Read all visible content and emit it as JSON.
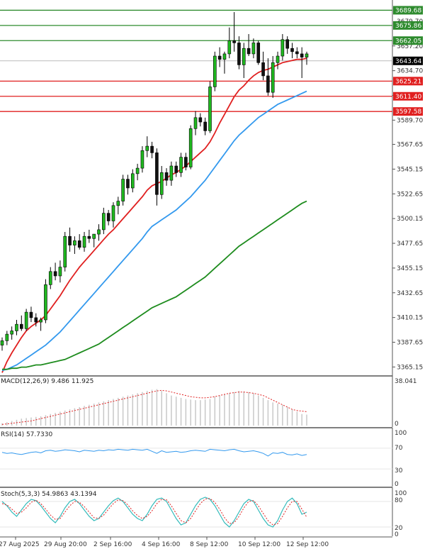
{
  "chart_data": {
    "type": "candlestick",
    "price_axis": {
      "ticks": [
        "3657.20",
        "3634.70",
        "3612.20",
        "3589.70",
        "3567.65",
        "3545.15",
        "3522.65",
        "3500.15",
        "3477.65",
        "3455.15",
        "3432.65",
        "3410.15",
        "3387.65",
        "3365.15"
      ],
      "partial_tick": "3679.70",
      "ylim": [
        3357,
        3699
      ]
    },
    "x_axis": {
      "labels": [
        "27 Aug 2025",
        "29 Aug 20:00",
        "2 Sep 16:00",
        "4 Sep 16:00",
        "8 Sep 12:00",
        "10 Sep 12:00",
        "12 Sep 12:00"
      ]
    },
    "current_price": {
      "value": 3643.64,
      "label": "3643.64",
      "color": "#000000"
    },
    "resistance_levels": [
      {
        "value": 3689.68,
        "label": "3689.68",
        "color": "#2e8b2e"
      },
      {
        "value": 3675.86,
        "label": "3675.86",
        "color": "#2e8b2e"
      },
      {
        "value": 3662.05,
        "label": "3662.05",
        "color": "#2e8b2e"
      }
    ],
    "support_levels": [
      {
        "value": 3625.21,
        "label": "3625.21",
        "color": "#e02020"
      },
      {
        "value": 3611.4,
        "label": "3611.40",
        "color": "#e02020"
      },
      {
        "value": 3597.58,
        "label": "3597.58",
        "color": "#e02020"
      }
    ],
    "candles": [
      [
        3385,
        3392,
        3380,
        3389
      ],
      [
        3389,
        3398,
        3385,
        3395
      ],
      [
        3395,
        3402,
        3390,
        3398
      ],
      [
        3398,
        3408,
        3394,
        3404
      ],
      [
        3404,
        3412,
        3398,
        3400
      ],
      [
        3400,
        3418,
        3398,
        3415
      ],
      [
        3415,
        3420,
        3406,
        3410
      ],
      [
        3410,
        3414,
        3402,
        3406
      ],
      [
        3406,
        3410,
        3398,
        3408
      ],
      [
        3408,
        3445,
        3405,
        3440
      ],
      [
        3440,
        3456,
        3436,
        3452
      ],
      [
        3452,
        3460,
        3444,
        3448
      ],
      [
        3448,
        3462,
        3442,
        3456
      ],
      [
        3456,
        3488,
        3452,
        3484
      ],
      [
        3484,
        3492,
        3470,
        3476
      ],
      [
        3476,
        3484,
        3468,
        3480
      ],
      [
        3480,
        3486,
        3472,
        3474
      ],
      [
        3474,
        3488,
        3470,
        3484
      ],
      [
        3484,
        3490,
        3478,
        3482
      ],
      [
        3482,
        3486,
        3474,
        3486
      ],
      [
        3486,
        3495,
        3480,
        3490
      ],
      [
        3490,
        3510,
        3486,
        3505
      ],
      [
        3505,
        3508,
        3494,
        3498
      ],
      [
        3498,
        3515,
        3492,
        3512
      ],
      [
        3512,
        3520,
        3504,
        3516
      ],
      [
        3516,
        3540,
        3512,
        3536
      ],
      [
        3536,
        3540,
        3522,
        3528
      ],
      [
        3528,
        3545,
        3524,
        3541
      ],
      [
        3541,
        3550,
        3535,
        3546
      ],
      [
        3546,
        3566,
        3542,
        3562
      ],
      [
        3562,
        3575,
        3556,
        3566
      ],
      [
        3566,
        3570,
        3555,
        3560
      ],
      [
        3560,
        3564,
        3512,
        3522
      ],
      [
        3522,
        3548,
        3518,
        3542
      ],
      [
        3542,
        3546,
        3530,
        3535
      ],
      [
        3535,
        3552,
        3530,
        3548
      ],
      [
        3548,
        3552,
        3538,
        3542
      ],
      [
        3542,
        3560,
        3538,
        3556
      ],
      [
        3556,
        3560,
        3544,
        3547
      ],
      [
        3547,
        3585,
        3545,
        3582
      ],
      [
        3582,
        3598,
        3576,
        3592
      ],
      [
        3592,
        3596,
        3584,
        3588
      ],
      [
        3588,
        3592,
        3576,
        3580
      ],
      [
        3580,
        3625,
        3578,
        3620
      ],
      [
        3620,
        3652,
        3616,
        3648
      ],
      [
        3648,
        3656,
        3638,
        3645
      ],
      [
        3645,
        3652,
        3632,
        3650
      ],
      [
        3650,
        3674,
        3646,
        3662
      ],
      [
        3662,
        3688,
        3652,
        3660
      ],
      [
        3660,
        3666,
        3636,
        3640
      ],
      [
        3640,
        3660,
        3628,
        3655
      ],
      [
        3655,
        3668,
        3648,
        3650
      ],
      [
        3650,
        3664,
        3646,
        3660
      ],
      [
        3660,
        3662,
        3640,
        3642
      ],
      [
        3642,
        3652,
        3626,
        3630
      ],
      [
        3630,
        3646,
        3612,
        3615
      ],
      [
        3615,
        3648,
        3610,
        3642
      ],
      [
        3642,
        3652,
        3636,
        3648
      ],
      [
        3648,
        3668,
        3644,
        3663
      ],
      [
        3663,
        3666,
        3650,
        3655
      ],
      [
        3655,
        3660,
        3646,
        3652
      ],
      [
        3652,
        3656,
        3646,
        3650
      ],
      [
        3650,
        3656,
        3628,
        3647
      ],
      [
        3647,
        3652,
        3640,
        3650
      ]
    ],
    "moving_averages": [
      {
        "color": "#e02020",
        "values": [
          3360,
          3370,
          3378,
          3385,
          3392,
          3398,
          3402,
          3405,
          3408,
          3412,
          3418,
          3424,
          3430,
          3437,
          3444,
          3450,
          3456,
          3461,
          3466,
          3471,
          3476,
          3481,
          3486,
          3490,
          3495,
          3500,
          3505,
          3510,
          3515,
          3520,
          3526,
          3530,
          3532,
          3534,
          3537,
          3540,
          3542,
          3545,
          3548,
          3552,
          3556,
          3560,
          3564,
          3570,
          3578,
          3587,
          3595,
          3603,
          3611,
          3617,
          3621,
          3626,
          3630,
          3633,
          3635,
          3636,
          3638,
          3640,
          3642,
          3643,
          3644,
          3645,
          3645,
          3646
        ]
      },
      {
        "color": "#3399ee",
        "values": [
          3362,
          3363,
          3365,
          3367,
          3370,
          3373,
          3376,
          3379,
          3382,
          3385,
          3389,
          3393,
          3397,
          3402,
          3407,
          3412,
          3417,
          3422,
          3427,
          3432,
          3437,
          3442,
          3447,
          3452,
          3457,
          3462,
          3467,
          3472,
          3477,
          3482,
          3488,
          3493,
          3496,
          3499,
          3502,
          3505,
          3508,
          3512,
          3516,
          3520,
          3525,
          3530,
          3535,
          3541,
          3547,
          3553,
          3559,
          3565,
          3571,
          3576,
          3580,
          3584,
          3588,
          3592,
          3595,
          3598,
          3601,
          3604,
          3606,
          3608,
          3610,
          3612,
          3614,
          3616
        ]
      },
      {
        "color": "#1e8c1e",
        "values": [
          3363,
          3363,
          3364,
          3364,
          3365,
          3365,
          3366,
          3367,
          3367,
          3368,
          3369,
          3370,
          3371,
          3372,
          3374,
          3376,
          3378,
          3380,
          3382,
          3384,
          3386,
          3389,
          3392,
          3395,
          3398,
          3401,
          3404,
          3407,
          3410,
          3413,
          3416,
          3419,
          3421,
          3423,
          3425,
          3427,
          3429,
          3432,
          3435,
          3438,
          3441,
          3444,
          3447,
          3451,
          3455,
          3459,
          3463,
          3467,
          3471,
          3475,
          3478,
          3481,
          3484,
          3487,
          3490,
          3493,
          3496,
          3499,
          3502,
          3505,
          3508,
          3511,
          3514,
          3516
        ]
      }
    ],
    "macd": {
      "label": "MACD(12,26,9) 9.486 11.925",
      "scale_labels": [
        "38.041",
        "0"
      ],
      "ylim": [
        0,
        38.041
      ],
      "histogram": [
        2,
        3,
        4,
        5,
        6,
        6.5,
        7,
        7.5,
        8,
        9,
        10,
        11,
        12,
        13,
        14,
        15,
        16,
        17,
        18,
        19,
        20,
        21,
        22,
        23,
        24,
        25,
        26,
        27,
        28,
        29,
        30,
        31,
        31.5,
        30,
        28,
        26,
        25,
        24,
        23,
        22.5,
        22,
        22,
        22.5,
        23,
        25,
        26,
        27,
        28,
        29,
        30,
        29.5,
        29,
        28,
        26,
        24,
        22,
        20,
        19,
        18,
        16,
        14,
        12,
        10,
        9.5
      ],
      "signal": [
        1,
        1.5,
        2,
        2.5,
        3,
        3.5,
        4,
        5,
        6,
        7,
        8,
        9,
        10,
        11,
        12,
        13,
        14,
        15,
        16,
        17,
        18,
        19,
        20,
        21,
        22,
        23,
        24,
        25,
        26,
        27,
        28,
        29,
        30,
        30.5,
        30,
        29,
        28,
        27,
        26,
        25,
        24.5,
        24,
        24,
        24.5,
        25,
        26,
        27,
        28,
        28.5,
        29,
        29,
        28.5,
        28,
        27,
        26,
        24,
        22,
        20,
        18,
        16,
        14,
        13,
        12.5,
        12
      ]
    },
    "rsi": {
      "label": "RSI(14) 57.7330",
      "scale_labels": [
        "100",
        "70",
        "30",
        "0"
      ],
      "ylim": [
        0,
        100
      ],
      "values": [
        62,
        60,
        61,
        59,
        58,
        60,
        62,
        63,
        61,
        65,
        66,
        64,
        65,
        67,
        66,
        65,
        63,
        66,
        65,
        64,
        66,
        65,
        67,
        66,
        68,
        67,
        66,
        68,
        67,
        66,
        68,
        64,
        60,
        65,
        62,
        63,
        64,
        62,
        63,
        65,
        66,
        65,
        64,
        68,
        67,
        66,
        65,
        67,
        68,
        65,
        63,
        64,
        65,
        63,
        60,
        55,
        61,
        60,
        62,
        58,
        57,
        59,
        56,
        58
      ]
    },
    "stochastic": {
      "label": "Stoch(5,3,3) 54.9863 43.1394",
      "scale_labels": [
        "100",
        "80",
        "20",
        "0"
      ],
      "ylim": [
        0,
        100
      ],
      "k": [
        80,
        70,
        55,
        45,
        60,
        75,
        85,
        82,
        70,
        55,
        40,
        30,
        45,
        65,
        80,
        85,
        75,
        60,
        45,
        35,
        40,
        55,
        70,
        82,
        88,
        80,
        65,
        50,
        40,
        35,
        50,
        70,
        85,
        88,
        80,
        60,
        40,
        25,
        30,
        50,
        70,
        85,
        90,
        85,
        70,
        50,
        30,
        20,
        35,
        55,
        75,
        85,
        80,
        60,
        40,
        25,
        20,
        35,
        60,
        80,
        88,
        75,
        50,
        55
      ],
      "d": [
        75,
        72,
        62,
        52,
        55,
        65,
        78,
        83,
        75,
        62,
        48,
        38,
        40,
        55,
        70,
        80,
        78,
        68,
        55,
        42,
        40,
        48,
        62,
        75,
        84,
        82,
        72,
        58,
        47,
        40,
        45,
        58,
        75,
        85,
        84,
        70,
        52,
        35,
        30,
        40,
        58,
        75,
        86,
        87,
        78,
        62,
        42,
        28,
        30,
        45,
        65,
        80,
        82,
        70,
        52,
        35,
        25,
        28,
        45,
        65,
        80,
        80,
        62,
        43
      ]
    }
  }
}
